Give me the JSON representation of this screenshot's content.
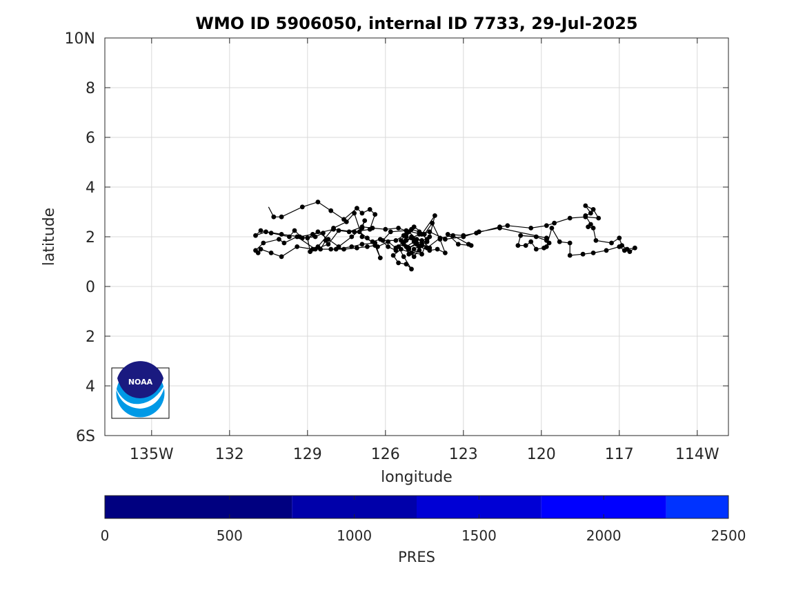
{
  "chart_data": {
    "type": "map-trajectory",
    "title": "WMO ID 5906050, internal ID 7733, 29-Jul-2025",
    "xlabel": "longitude",
    "ylabel": "latitude",
    "xlim": [
      -136.8,
      -112.8
    ],
    "ylim": [
      -6,
      10
    ],
    "grid": true,
    "x_ticks": [
      {
        "value": -135,
        "label": "135W"
      },
      {
        "value": -132,
        "label": "132"
      },
      {
        "value": -129,
        "label": "129"
      },
      {
        "value": -126,
        "label": "126"
      },
      {
        "value": -123,
        "label": "123"
      },
      {
        "value": -120,
        "label": "120"
      },
      {
        "value": -117,
        "label": "117"
      },
      {
        "value": -114,
        "label": "114W"
      }
    ],
    "y_ticks": [
      {
        "value": 10,
        "label": "10N"
      },
      {
        "value": 8,
        "label": "8"
      },
      {
        "value": 6,
        "label": "6"
      },
      {
        "value": 4,
        "label": "4"
      },
      {
        "value": 2,
        "label": "2"
      },
      {
        "value": 0,
        "label": "0"
      },
      {
        "value": -2,
        "label": "2"
      },
      {
        "value": -4,
        "label": "4"
      },
      {
        "value": -6,
        "label": "6S"
      }
    ],
    "trajectory": [
      [
        -130.5,
        3.2
      ],
      [
        -130.3,
        2.8
      ],
      [
        -130.0,
        2.8
      ],
      [
        -129.2,
        3.2
      ],
      [
        -128.6,
        3.4
      ],
      [
        -128.1,
        3.05
      ],
      [
        -127.6,
        2.7
      ],
      [
        -127.1,
        3.15
      ],
      [
        -126.9,
        2.95
      ],
      [
        -126.6,
        3.1
      ],
      [
        -126.4,
        2.9
      ],
      [
        -126.6,
        2.3
      ],
      [
        -127.2,
        2.2
      ],
      [
        -128.0,
        2.3
      ],
      [
        -128.8,
        2.1
      ],
      [
        -129.3,
        2.0
      ],
      [
        -130.0,
        2.1
      ],
      [
        -130.6,
        2.2
      ],
      [
        -131.0,
        2.05
      ],
      [
        -130.8,
        2.25
      ],
      [
        -130.4,
        2.15
      ],
      [
        -129.7,
        2.0
      ],
      [
        -129.5,
        2.25
      ],
      [
        -129.2,
        1.95
      ],
      [
        -128.7,
        2.0
      ],
      [
        -128.4,
        2.15
      ],
      [
        -128.3,
        1.85
      ],
      [
        -128.5,
        1.5
      ],
      [
        -127.9,
        1.5
      ],
      [
        -127.3,
        1.6
      ],
      [
        -126.9,
        1.7
      ],
      [
        -126.4,
        1.75
      ],
      [
        -126.2,
        1.15
      ],
      [
        -126.4,
        1.65
      ],
      [
        -126.7,
        1.6
      ],
      [
        -127.1,
        1.55
      ],
      [
        -127.6,
        1.5
      ],
      [
        -128.1,
        1.5
      ],
      [
        -128.8,
        1.5
      ],
      [
        -129.4,
        1.6
      ],
      [
        -130.0,
        1.2
      ],
      [
        -130.4,
        1.35
      ],
      [
        -130.8,
        1.5
      ],
      [
        -130.9,
        1.35
      ],
      [
        -131.0,
        1.45
      ],
      [
        -130.7,
        1.75
      ],
      [
        -130.1,
        1.9
      ],
      [
        -129.9,
        1.75
      ],
      [
        -129.4,
        2.0
      ],
      [
        -128.7,
        1.5
      ],
      [
        -128.2,
        1.7
      ],
      [
        -127.8,
        2.25
      ],
      [
        -127.4,
        2.2
      ],
      [
        -126.9,
        2.4
      ],
      [
        -126.5,
        2.35
      ],
      [
        -126.0,
        2.3
      ],
      [
        -125.5,
        2.35
      ],
      [
        -125.1,
        2.2
      ],
      [
        -124.8,
        1.9
      ],
      [
        -124.7,
        1.6
      ],
      [
        -124.3,
        1.45
      ],
      [
        -124.0,
        1.5
      ],
      [
        -123.7,
        1.35
      ],
      [
        -123.9,
        1.9
      ],
      [
        -124.2,
        2.55
      ],
      [
        -124.5,
        2.1
      ],
      [
        -124.9,
        2.4
      ],
      [
        -125.2,
        2.0
      ],
      [
        -125.5,
        1.6
      ],
      [
        -125.3,
        1.2
      ],
      [
        -125.0,
        0.7
      ],
      [
        -125.2,
        0.9
      ],
      [
        -125.5,
        0.95
      ],
      [
        -125.7,
        1.25
      ],
      [
        -125.4,
        1.5
      ],
      [
        -125.0,
        1.35
      ],
      [
        -124.6,
        1.3
      ],
      [
        -124.4,
        1.8
      ],
      [
        -124.9,
        1.9
      ],
      [
        -125.3,
        2.05
      ],
      [
        -125.6,
        1.85
      ],
      [
        -126.1,
        1.85
      ],
      [
        -125.8,
        2.2
      ],
      [
        -125.2,
        2.25
      ],
      [
        -124.6,
        2.1
      ],
      [
        -124.1,
        2.85
      ],
      [
        -124.3,
        2.0
      ],
      [
        -124.8,
        1.7
      ],
      [
        -125.1,
        1.55
      ],
      [
        -124.8,
        1.75
      ],
      [
        -124.4,
        1.55
      ],
      [
        -123.9,
        1.95
      ],
      [
        -123.4,
        2.05
      ],
      [
        -122.8,
        1.7
      ],
      [
        -122.7,
        1.65
      ],
      [
        -123.2,
        1.7
      ],
      [
        -123.6,
        2.1
      ],
      [
        -123.0,
        2.05
      ],
      [
        -122.5,
        2.15
      ],
      [
        -121.6,
        2.4
      ],
      [
        -121.3,
        2.45
      ],
      [
        -120.4,
        2.35
      ],
      [
        -119.8,
        2.45
      ],
      [
        -119.5,
        2.55
      ],
      [
        -118.9,
        2.75
      ],
      [
        -118.3,
        2.8
      ],
      [
        -117.8,
        2.75
      ],
      [
        -118.0,
        3.1
      ],
      [
        -118.3,
        3.25
      ],
      [
        -118.1,
        2.95
      ],
      [
        -118.3,
        2.85
      ],
      [
        -118.1,
        2.5
      ],
      [
        -118.2,
        2.4
      ],
      [
        -118.0,
        2.35
      ],
      [
        -117.9,
        1.85
      ],
      [
        -117.3,
        1.75
      ],
      [
        -117.0,
        1.95
      ],
      [
        -116.9,
        1.65
      ],
      [
        -116.7,
        1.5
      ],
      [
        -116.4,
        1.55
      ],
      [
        -116.6,
        1.4
      ],
      [
        -116.8,
        1.45
      ],
      [
        -117.0,
        1.6
      ],
      [
        -117.5,
        1.45
      ],
      [
        -118.0,
        1.35
      ],
      [
        -118.4,
        1.3
      ],
      [
        -118.9,
        1.25
      ],
      [
        -118.9,
        1.75
      ],
      [
        -119.3,
        1.8
      ],
      [
        -119.6,
        2.35
      ],
      [
        -119.8,
        1.6
      ],
      [
        -119.9,
        1.55
      ],
      [
        -120.2,
        1.5
      ],
      [
        -120.4,
        1.8
      ],
      [
        -120.6,
        1.65
      ],
      [
        -120.9,
        1.65
      ],
      [
        -120.8,
        2.05
      ],
      [
        -120.2,
        2.0
      ],
      [
        -119.8,
        1.85
      ],
      [
        -119.7,
        1.75
      ],
      [
        -119.8,
        1.95
      ],
      [
        -121.6,
        2.35
      ],
      [
        -122.4,
        2.2
      ],
      [
        -123.0,
        2.0
      ],
      [
        -123.7,
        1.9
      ],
      [
        -124.3,
        2.2
      ],
      [
        -124.7,
        2.1
      ],
      [
        -125.0,
        1.95
      ],
      [
        -125.3,
        1.75
      ],
      [
        -125.1,
        1.5
      ],
      [
        -124.9,
        1.2
      ],
      [
        -124.6,
        1.65
      ],
      [
        -124.4,
        1.9
      ],
      [
        -124.7,
        2.2
      ],
      [
        -125.0,
        2.3
      ],
      [
        -125.2,
        2.1
      ],
      [
        -125.4,
        1.85
      ],
      [
        -125.2,
        1.6
      ],
      [
        -124.9,
        1.8
      ],
      [
        -124.7,
        1.45
      ],
      [
        -125.1,
        1.3
      ],
      [
        -125.3,
        1.7
      ],
      [
        -125.6,
        1.55
      ],
      [
        -125.9,
        1.8
      ],
      [
        -126.3,
        1.6
      ],
      [
        -126.7,
        1.95
      ],
      [
        -127.0,
        2.2
      ],
      [
        -126.8,
        2.65
      ],
      [
        -126.9,
        2.35
      ],
      [
        -127.3,
        2.0
      ],
      [
        -127.8,
        1.6
      ],
      [
        -128.2,
        1.9
      ],
      [
        -128.6,
        2.2
      ],
      [
        -129.0,
        1.95
      ],
      [
        -128.9,
        1.4
      ],
      [
        -128.6,
        1.6
      ],
      [
        -128.0,
        2.35
      ],
      [
        -127.5,
        2.6
      ],
      [
        -127.2,
        2.95
      ],
      [
        -126.9,
        2.0
      ],
      [
        -126.5,
        1.8
      ],
      [
        -126.2,
        1.9
      ],
      [
        -125.9,
        1.6
      ],
      [
        -125.6,
        1.45
      ],
      [
        -125.2,
        1.85
      ],
      [
        -125.0,
        2.0
      ],
      [
        -124.6,
        1.85
      ],
      [
        -124.3,
        1.55
      ],
      [
        -124.6,
        1.7
      ],
      [
        -124.9,
        1.5
      ]
    ]
  },
  "colorbar": {
    "label": "PRES",
    "min": 0,
    "max": 2500,
    "ticks": [
      {
        "value": 0,
        "label": "0"
      },
      {
        "value": 500,
        "label": "500"
      },
      {
        "value": 1000,
        "label": "1000"
      },
      {
        "value": 1500,
        "label": "1500"
      },
      {
        "value": 2000,
        "label": "2000"
      },
      {
        "value": 2500,
        "label": "2500"
      }
    ],
    "segments": [
      {
        "from": 0,
        "to": 750,
        "color": "#000080"
      },
      {
        "from": 750,
        "to": 1250,
        "color": "#0000aa"
      },
      {
        "from": 1250,
        "to": 1750,
        "color": "#0000d5"
      },
      {
        "from": 1750,
        "to": 2250,
        "color": "#0000ff"
      },
      {
        "from": 2250,
        "to": 2500,
        "color": "#0033ff"
      }
    ]
  },
  "logo": {
    "text": "NOAA",
    "colors": {
      "navy": "#1a1a80",
      "sky": "#0099e6",
      "white": "#ffffff"
    }
  },
  "colors": {
    "track": "#000000",
    "grid": "#d9d9d9",
    "axes": "#262626"
  }
}
